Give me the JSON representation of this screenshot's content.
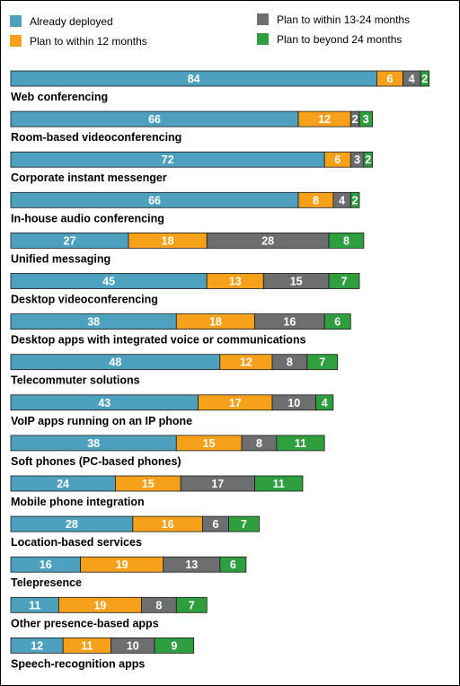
{
  "chart_data": {
    "type": "bar",
    "orientation": "horizontal",
    "stacked": true,
    "grid": false,
    "legend_position": "top",
    "categories": [
      "Web conferencing",
      "Room-based videoconferencing",
      "Corporate instant messenger",
      "In-house audio conferencing",
      "Unified messaging",
      "Desktop videoconferencing",
      "Desktop apps with integrated voice or communications",
      "Telecommuter solutions",
      "VoIP apps running on an IP phone",
      "Soft phones (PC-based phones)",
      "Mobile phone integration",
      "Location-based services",
      "Telepresence",
      "Other presence-based apps",
      "Speech-recognition apps"
    ],
    "series": [
      {
        "name": "Already deployed",
        "color": "#4ea0bf",
        "values": [
          84,
          66,
          72,
          66,
          27,
          45,
          38,
          48,
          43,
          38,
          24,
          28,
          16,
          11,
          12
        ]
      },
      {
        "name": "Plan to within 12 months",
        "color": "#f7a11a",
        "values": [
          6,
          12,
          6,
          8,
          18,
          13,
          18,
          12,
          17,
          15,
          15,
          16,
          19,
          19,
          11
        ]
      },
      {
        "name": "Plan to within 13-24 months",
        "color": "#6d6e70",
        "values": [
          4,
          2,
          3,
          4,
          28,
          15,
          16,
          8,
          10,
          8,
          17,
          6,
          13,
          8,
          10
        ]
      },
      {
        "name": "Plan to beyond 24 months",
        "color": "#2f9e3f",
        "values": [
          2,
          3,
          2,
          2,
          8,
          7,
          6,
          7,
          4,
          11,
          11,
          7,
          6,
          7,
          9
        ]
      }
    ]
  }
}
